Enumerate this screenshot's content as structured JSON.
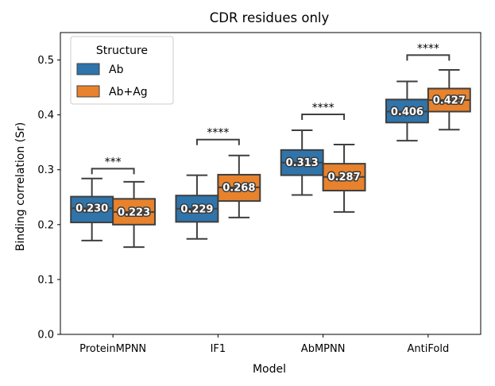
{
  "chart_data": {
    "type": "box",
    "title": "CDR residues only",
    "xlabel": "Model",
    "ylabel": "Binding correlation (Sr)",
    "ylim": [
      0.0,
      0.55
    ],
    "yticks": [
      0.0,
      0.1,
      0.2,
      0.3,
      0.4,
      0.5
    ],
    "grid": false,
    "categories": [
      "ProteinMPNN",
      "IF1",
      "AbMPNN",
      "AntiFold"
    ],
    "legend": {
      "title": "Structure",
      "placement": "top-left"
    },
    "series": [
      {
        "name": "Ab",
        "color": "#2f74ab",
        "boxes": [
          {
            "whislo": 0.171,
            "q1": 0.204,
            "med": 0.23,
            "q3": 0.251,
            "whishi": 0.284,
            "label": "0.230"
          },
          {
            "whislo": 0.174,
            "q1": 0.205,
            "med": 0.229,
            "q3": 0.253,
            "whishi": 0.29,
            "label": "0.229"
          },
          {
            "whislo": 0.254,
            "q1": 0.29,
            "med": 0.313,
            "q3": 0.336,
            "whishi": 0.372,
            "label": "0.313"
          },
          {
            "whislo": 0.353,
            "q1": 0.386,
            "med": 0.406,
            "q3": 0.428,
            "whishi": 0.461,
            "label": "0.406"
          }
        ]
      },
      {
        "name": "Ab+Ag",
        "color": "#e8822c",
        "boxes": [
          {
            "whislo": 0.159,
            "q1": 0.2,
            "med": 0.223,
            "q3": 0.247,
            "whishi": 0.278,
            "label": "0.223"
          },
          {
            "whislo": 0.213,
            "q1": 0.243,
            "med": 0.268,
            "q3": 0.291,
            "whishi": 0.326,
            "label": "0.268"
          },
          {
            "whislo": 0.223,
            "q1": 0.262,
            "med": 0.287,
            "q3": 0.311,
            "whishi": 0.346,
            "label": "0.287"
          },
          {
            "whislo": 0.373,
            "q1": 0.406,
            "med": 0.427,
            "q3": 0.448,
            "whishi": 0.482,
            "label": "0.427"
          }
        ]
      }
    ],
    "significance": [
      {
        "category": "ProteinMPNN",
        "label": "***",
        "y": 0.302
      },
      {
        "category": "IF1",
        "label": "****",
        "y": 0.355
      },
      {
        "category": "AbMPNN",
        "label": "****",
        "y": 0.401
      },
      {
        "category": "AntiFold",
        "label": "****",
        "y": 0.509
      }
    ]
  }
}
